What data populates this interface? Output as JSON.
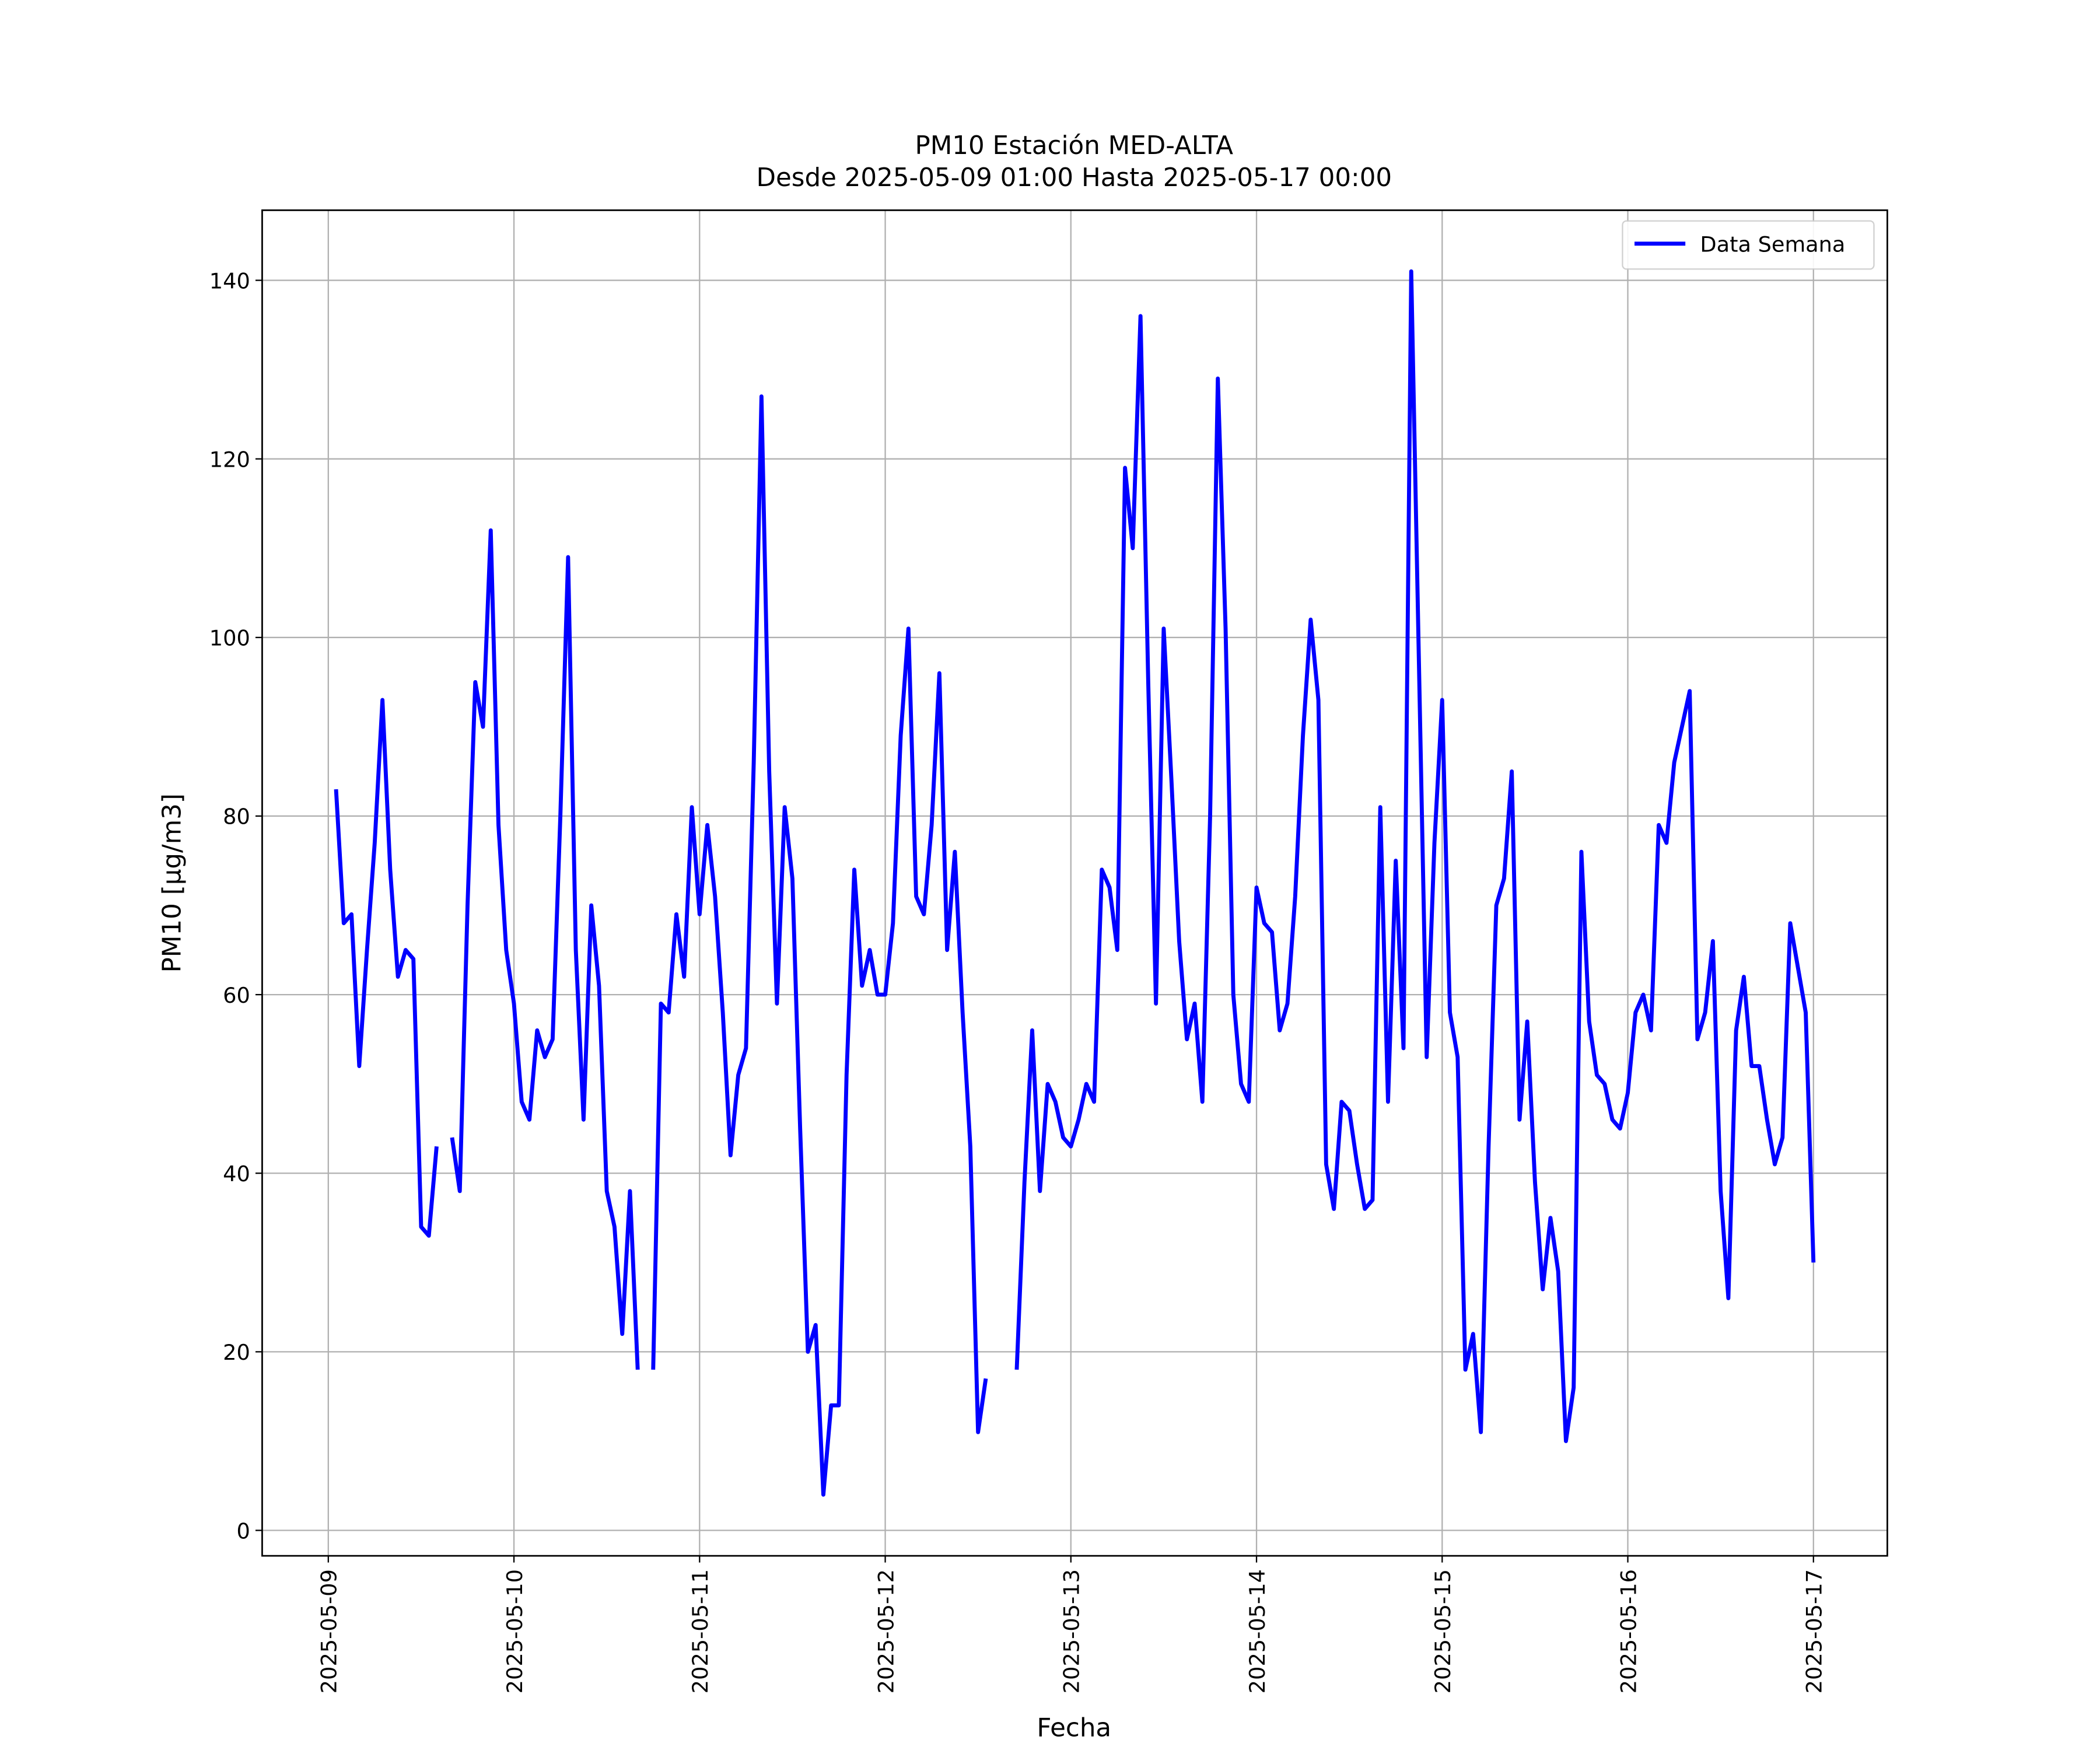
{
  "chart_data": {
    "type": "line",
    "title": "PM10 Estación MED-ALTA",
    "subtitle": "Desde 2025-05-09 01:00 Hasta 2025-05-17 00:00",
    "xlabel": "Fecha",
    "ylabel": "PM10 [μg/m3]",
    "legend": "upper right",
    "grid": true,
    "xlim": [
      "2025-05-08 15:27",
      "2025-05-17 09:33"
    ],
    "xticks": [
      "2025-05-09",
      "2025-05-10",
      "2025-05-11",
      "2025-05-12",
      "2025-05-13",
      "2025-05-14",
      "2025-05-15",
      "2025-05-16",
      "2025-05-17"
    ],
    "ylim": [
      -2.85,
      147.85
    ],
    "yticks": [
      0,
      20,
      40,
      60,
      80,
      100,
      120,
      140
    ],
    "x": [
      "2025-05-09 01:00",
      "2025-05-09 02:00",
      "2025-05-09 03:00",
      "2025-05-09 04:00",
      "2025-05-09 05:00",
      "2025-05-09 06:00",
      "2025-05-09 07:00",
      "2025-05-09 08:00",
      "2025-05-09 09:00",
      "2025-05-09 10:00",
      "2025-05-09 11:00",
      "2025-05-09 12:00",
      "2025-05-09 13:00",
      "2025-05-09 14:00",
      "2025-05-09 15:00",
      "2025-05-09 16:00",
      "2025-05-09 17:00",
      "2025-05-09 18:00",
      "2025-05-09 19:00",
      "2025-05-09 20:00",
      "2025-05-09 21:00",
      "2025-05-09 22:00",
      "2025-05-09 23:00",
      "2025-05-10 00:00",
      "2025-05-10 01:00",
      "2025-05-10 02:00",
      "2025-05-10 03:00",
      "2025-05-10 04:00",
      "2025-05-10 05:00",
      "2025-05-10 06:00",
      "2025-05-10 07:00",
      "2025-05-10 08:00",
      "2025-05-10 09:00",
      "2025-05-10 10:00",
      "2025-05-10 11:00",
      "2025-05-10 12:00",
      "2025-05-10 13:00",
      "2025-05-10 14:00",
      "2025-05-10 15:00",
      "2025-05-10 16:00",
      "2025-05-10 17:00",
      "2025-05-10 18:00",
      "2025-05-10 19:00",
      "2025-05-10 20:00",
      "2025-05-10 21:00",
      "2025-05-10 22:00",
      "2025-05-10 23:00",
      "2025-05-11 00:00",
      "2025-05-11 01:00",
      "2025-05-11 02:00",
      "2025-05-11 03:00",
      "2025-05-11 04:00",
      "2025-05-11 05:00",
      "2025-05-11 06:00",
      "2025-05-11 07:00",
      "2025-05-11 08:00",
      "2025-05-11 09:00",
      "2025-05-11 10:00",
      "2025-05-11 11:00",
      "2025-05-11 12:00",
      "2025-05-11 13:00",
      "2025-05-11 14:00",
      "2025-05-11 15:00",
      "2025-05-11 16:00",
      "2025-05-11 17:00",
      "2025-05-11 18:00",
      "2025-05-11 19:00",
      "2025-05-11 20:00",
      "2025-05-11 21:00",
      "2025-05-11 22:00",
      "2025-05-11 23:00",
      "2025-05-12 00:00",
      "2025-05-12 01:00",
      "2025-05-12 02:00",
      "2025-05-12 03:00",
      "2025-05-12 04:00",
      "2025-05-12 05:00",
      "2025-05-12 06:00",
      "2025-05-12 07:00",
      "2025-05-12 08:00",
      "2025-05-12 09:00",
      "2025-05-12 10:00",
      "2025-05-12 11:00",
      "2025-05-12 12:00",
      "2025-05-12 13:00",
      "2025-05-12 14:00",
      "2025-05-12 15:00",
      "2025-05-12 16:00",
      "2025-05-12 17:00",
      "2025-05-12 18:00",
      "2025-05-12 19:00",
      "2025-05-12 20:00",
      "2025-05-12 21:00",
      "2025-05-12 22:00",
      "2025-05-12 23:00",
      "2025-05-13 00:00",
      "2025-05-13 01:00",
      "2025-05-13 02:00",
      "2025-05-13 03:00",
      "2025-05-13 04:00",
      "2025-05-13 05:00",
      "2025-05-13 06:00",
      "2025-05-13 07:00",
      "2025-05-13 08:00",
      "2025-05-13 09:00",
      "2025-05-13 10:00",
      "2025-05-13 11:00",
      "2025-05-13 12:00",
      "2025-05-13 13:00",
      "2025-05-13 14:00",
      "2025-05-13 15:00",
      "2025-05-13 16:00",
      "2025-05-13 17:00",
      "2025-05-13 18:00",
      "2025-05-13 19:00",
      "2025-05-13 20:00",
      "2025-05-13 21:00",
      "2025-05-13 22:00",
      "2025-05-13 23:00",
      "2025-05-14 00:00",
      "2025-05-14 01:00",
      "2025-05-14 02:00",
      "2025-05-14 03:00",
      "2025-05-14 04:00",
      "2025-05-14 05:00",
      "2025-05-14 06:00",
      "2025-05-14 07:00",
      "2025-05-14 08:00",
      "2025-05-14 09:00",
      "2025-05-14 10:00",
      "2025-05-14 11:00",
      "2025-05-14 12:00",
      "2025-05-14 13:00",
      "2025-05-14 14:00",
      "2025-05-14 15:00",
      "2025-05-14 16:00",
      "2025-05-14 17:00",
      "2025-05-14 18:00",
      "2025-05-14 19:00",
      "2025-05-14 20:00",
      "2025-05-14 21:00",
      "2025-05-14 22:00",
      "2025-05-14 23:00",
      "2025-05-15 00:00",
      "2025-05-15 01:00",
      "2025-05-15 02:00",
      "2025-05-15 03:00",
      "2025-05-15 04:00",
      "2025-05-15 05:00",
      "2025-05-15 06:00",
      "2025-05-15 07:00",
      "2025-05-15 08:00",
      "2025-05-15 09:00",
      "2025-05-15 10:00",
      "2025-05-15 11:00",
      "2025-05-15 12:00",
      "2025-05-15 13:00",
      "2025-05-15 14:00",
      "2025-05-15 15:00",
      "2025-05-15 16:00",
      "2025-05-15 17:00",
      "2025-05-15 18:00",
      "2025-05-15 19:00",
      "2025-05-15 20:00",
      "2025-05-15 21:00",
      "2025-05-15 22:00",
      "2025-05-15 23:00",
      "2025-05-16 00:00",
      "2025-05-16 01:00",
      "2025-05-16 02:00",
      "2025-05-16 03:00",
      "2025-05-16 04:00",
      "2025-05-16 05:00",
      "2025-05-16 06:00",
      "2025-05-16 07:00",
      "2025-05-16 08:00",
      "2025-05-16 09:00",
      "2025-05-16 10:00",
      "2025-05-16 11:00",
      "2025-05-16 12:00",
      "2025-05-16 13:00",
      "2025-05-16 14:00",
      "2025-05-16 15:00",
      "2025-05-16 16:00",
      "2025-05-16 17:00",
      "2025-05-16 18:00",
      "2025-05-16 19:00",
      "2025-05-16 20:00",
      "2025-05-16 21:00",
      "2025-05-16 22:00",
      "2025-05-16 23:00",
      "2025-05-17 00:00"
    ],
    "series": [
      {
        "name": "Data Semana",
        "color": "#0000ff",
        "values": [
          83,
          68,
          69,
          52,
          65,
          77,
          93,
          74,
          62,
          65,
          64,
          34,
          33,
          43,
          null,
          44,
          38,
          70,
          95,
          90,
          112,
          79,
          65,
          59,
          48,
          46,
          56,
          53,
          55,
          80,
          109,
          65,
          46,
          70,
          61,
          38,
          34,
          22,
          38,
          18,
          null,
          18,
          59,
          58,
          69,
          62,
          81,
          69,
          79,
          71,
          58,
          42,
          51,
          54,
          86,
          127,
          85,
          59,
          81,
          73,
          45,
          20,
          23,
          4,
          14,
          14,
          51,
          74,
          61,
          65,
          60,
          60,
          68,
          89,
          101,
          71,
          69,
          79,
          96,
          65,
          76,
          58,
          43,
          11,
          17,
          null,
          null,
          null,
          18,
          39,
          56,
          38,
          50,
          48,
          44,
          43,
          46,
          50,
          48,
          74,
          72,
          65,
          119,
          110,
          136,
          95,
          59,
          101,
          84,
          66,
          55,
          59,
          48,
          80,
          129,
          101,
          60,
          50,
          48,
          72,
          68,
          67,
          56,
          59,
          71,
          89,
          102,
          93,
          41,
          36,
          48,
          47,
          41,
          36,
          37,
          81,
          48,
          75,
          54,
          141,
          97,
          53,
          77,
          93,
          58,
          53,
          18,
          22,
          11,
          43,
          70,
          73,
          85,
          46,
          57,
          39,
          27,
          35,
          29,
          10,
          16,
          76,
          57,
          51,
          50,
          46,
          45,
          49,
          58,
          60,
          56,
          79,
          77,
          86,
          90,
          94,
          55,
          58,
          66,
          38,
          26,
          56,
          62,
          52,
          52,
          46,
          41,
          44,
          68,
          63,
          58,
          30
        ]
      }
    ]
  }
}
